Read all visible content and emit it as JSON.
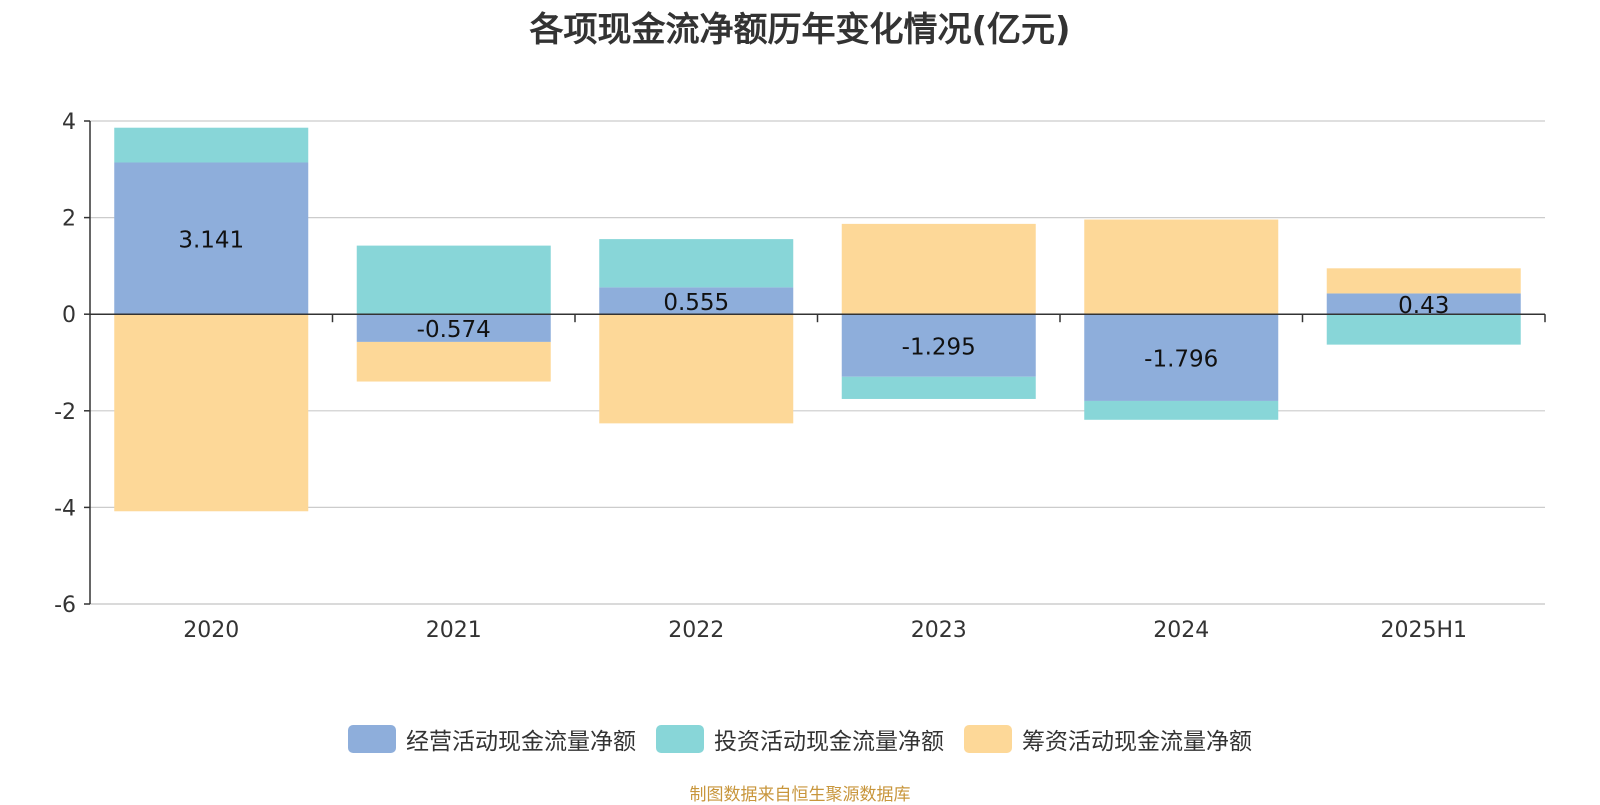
{
  "colors": {
    "operating": "#8eaedb",
    "investing": "#88d6d8",
    "financing": "#fdd898",
    "grid": "#cccccc",
    "axis": "#333333",
    "source": "#c8963c"
  },
  "source_note": "制图数据来自恒生聚源数据库",
  "chart_data": {
    "type": "bar",
    "stacked": true,
    "title": "各项现金流净额历年变化情况(亿元)",
    "categories": [
      "2020",
      "2021",
      "2022",
      "2023",
      "2024",
      "2025H1"
    ],
    "ylim": [
      -6,
      4
    ],
    "yticks": [
      4,
      2,
      0,
      -2,
      -4,
      -6
    ],
    "grid": true,
    "legend_position": "bottom",
    "series": [
      {
        "name": "经营活动现金流量净额",
        "color": "#8eaedb",
        "values": [
          3.141,
          -0.574,
          0.555,
          -1.295,
          -1.796,
          0.43
        ]
      },
      {
        "name": "投资活动现金流量净额",
        "color": "#88d6d8",
        "values": [
          0.72,
          1.42,
          1.0,
          -0.46,
          -0.39,
          -0.63
        ]
      },
      {
        "name": "筹资活动现金流量净额",
        "color": "#fdd898",
        "values": [
          -4.08,
          -0.82,
          -2.26,
          1.87,
          1.96,
          0.52
        ]
      }
    ],
    "data_labels": [
      "3.141",
      "-0.574",
      "0.555",
      "-1.295",
      "-1.796",
      "0.43"
    ]
  }
}
